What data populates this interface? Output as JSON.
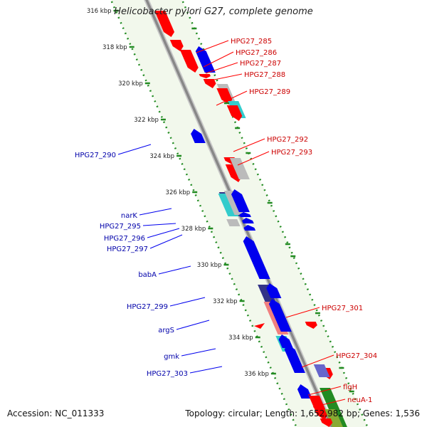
{
  "title": "Helicobacter pylori G27, complete genome",
  "footer": {
    "accession": "Accession: NC_011333",
    "topology": "Topology: circular; Length: 1,652,982 bp; Genes: 1,536"
  },
  "colors": {
    "forward": "#ff0000",
    "reverse": "#0000ee",
    "backbone": "#888888",
    "ruler": "#228b22",
    "grey": "#bbbbbb",
    "cyan": "#33cccc",
    "navy": "#333388",
    "salmon": "#f08080",
    "purple": "#6666cc",
    "green": "#228b22",
    "olive": "#88aa33"
  },
  "scale_labels": [
    {
      "kbp": 316,
      "text": "316 kbp"
    },
    {
      "kbp": 318,
      "text": "318 kbp"
    },
    {
      "kbp": 320,
      "text": "320 kbp"
    },
    {
      "kbp": 322,
      "text": "322 kbp"
    },
    {
      "kbp": 324,
      "text": "324 kbp"
    },
    {
      "kbp": 326,
      "text": "326 kbp"
    },
    {
      "kbp": 328,
      "text": "328 kbp"
    },
    {
      "kbp": 330,
      "text": "330 kbp"
    },
    {
      "kbp": 332,
      "text": "332 kbp"
    },
    {
      "kbp": 334,
      "text": "334 kbp"
    },
    {
      "kbp": 336,
      "text": "336 kbp"
    }
  ],
  "forward_labels": [
    "HPG27_285",
    "HPG27_286",
    "HPG27_287",
    "HPG27_288",
    "HPG27_289",
    "HPG27_292",
    "HPG27_293",
    "HPG27_301",
    "HPG27_304",
    "flgH",
    "neuA-1"
  ],
  "reverse_labels": [
    "HPG27_290",
    "narK",
    "HPG27_295",
    "HPG27_296",
    "HPG27_297",
    "babA",
    "HPG27_299",
    "argS",
    "gmk",
    "HPG27_303"
  ]
}
